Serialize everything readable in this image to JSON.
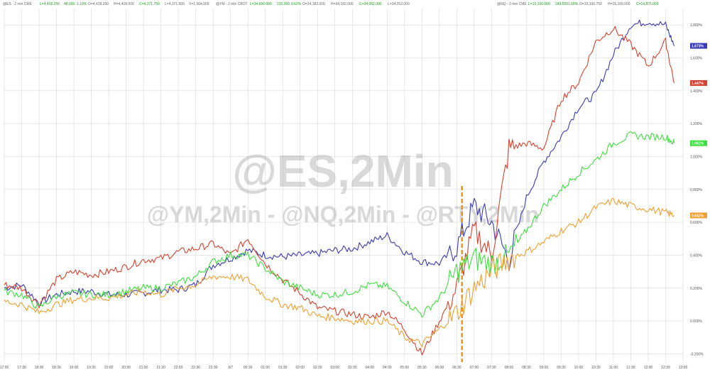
{
  "header": {
    "es": {
      "symbol": "@ES - 2 min CME",
      "last": "L=4,418.250",
      "chg": "48.000",
      "pct": "1.10%",
      "open": "O=4,418.250",
      "high": "H=4,418.500",
      "close": "C=4,371.750",
      "low": "L=4,371.500",
      "vol": "V=1,304,009"
    },
    "ym": {
      "symbol": "@YM - 2 min CBOT",
      "last": "L=34,656.000",
      "chg": "215.000",
      "pct": "0.62%",
      "open": "O=34,183.000",
      "high": "H=34,182.000",
      "close": "C=34,002.000",
      "low": "L=34,252.000"
    },
    "nq": {
      "symbol": "@NQ - 2 min CME",
      "last": "L=15,106.000",
      "chg": "249.500",
      "pct": "1.68%",
      "open": "O=15,100.750",
      "high": "H=15,100.000",
      "close": "C=14,875.000"
    }
  },
  "watermark": {
    "main": "@ES,2Min",
    "sub": "@YM,2Min - @NQ,2Min - @RTY,2Min"
  },
  "colors": {
    "nq": "#3a3ab8",
    "es": "#d9412e",
    "ym": "#3ee03e",
    "rty": "#f0a030",
    "marker": "#e08c10",
    "grid": "#d8d8d8"
  },
  "chart_data": {
    "type": "line",
    "title": "",
    "xlabel": "",
    "ylabel": "",
    "ylim": [
      -0.25,
      1.9
    ],
    "grid": true,
    "y_ticks": [
      "1.800%",
      "1.600%",
      "1.400%",
      "1.200%",
      "1.000%",
      "0.800%",
      "0.600%",
      "0.400%",
      "0.200%",
      "0.000%",
      "-0.200%"
    ],
    "x_ticks": [
      "17:00",
      "17:30",
      "18:00",
      "18:30",
      "19:00",
      "19:30",
      "20:00",
      "20:30",
      "21:00",
      "21:30",
      "22:00",
      "22:30",
      "23:30",
      "9/7",
      "00:30",
      "01:00",
      "01:30",
      "02:00",
      "02:30",
      "03:00",
      "03:30",
      "04:00",
      "04:30",
      "05:00",
      "05:30",
      "06:00",
      "06:30",
      "07:00",
      "07:30",
      "08:00",
      "08:30",
      "09:00",
      "09:30",
      "10:00",
      "10:30",
      "11:00",
      "11:30",
      "12:00",
      "12:30",
      "13:00"
    ],
    "x_range": [
      0,
      39
    ],
    "vline_at": 26.3,
    "series": [
      {
        "key": "nq",
        "last_label": "1.673%",
        "points": [
          [
            0,
            0.2
          ],
          [
            1,
            0.22
          ],
          [
            2,
            0.11
          ],
          [
            3,
            0.16
          ],
          [
            4,
            0.18
          ],
          [
            5,
            0.18
          ],
          [
            6,
            0.16
          ],
          [
            7,
            0.16
          ],
          [
            8,
            0.17
          ],
          [
            9,
            0.19
          ],
          [
            10,
            0.19
          ],
          [
            11,
            0.22
          ],
          [
            12,
            0.34
          ],
          [
            13,
            0.38
          ],
          [
            14,
            0.43
          ],
          [
            15,
            0.4
          ],
          [
            16,
            0.39
          ],
          [
            17,
            0.4
          ],
          [
            18,
            0.41
          ],
          [
            19,
            0.43
          ],
          [
            20,
            0.44
          ],
          [
            21,
            0.48
          ],
          [
            22,
            0.52
          ],
          [
            23,
            0.42
          ],
          [
            24,
            0.36
          ],
          [
            25,
            0.35
          ],
          [
            26,
            0.45
          ],
          [
            27,
            0.7
          ],
          [
            28,
            0.6
          ],
          [
            29,
            0.37
          ],
          [
            30,
            0.75
          ],
          [
            31,
            0.97
          ],
          [
            32,
            1.12
          ],
          [
            33,
            1.3
          ],
          [
            34,
            1.38
          ],
          [
            35,
            1.62
          ],
          [
            36,
            1.8
          ],
          [
            37,
            1.82
          ],
          [
            38,
            1.8
          ],
          [
            38.5,
            1.673
          ]
        ]
      },
      {
        "key": "es",
        "last_label": "1.447%",
        "points": [
          [
            0,
            0.22
          ],
          [
            1,
            0.2
          ],
          [
            2,
            0.1
          ],
          [
            3,
            0.25
          ],
          [
            4,
            0.3
          ],
          [
            5,
            0.28
          ],
          [
            6,
            0.3
          ],
          [
            7,
            0.33
          ],
          [
            8,
            0.37
          ],
          [
            9,
            0.38
          ],
          [
            10,
            0.42
          ],
          [
            11,
            0.44
          ],
          [
            12,
            0.47
          ],
          [
            13,
            0.4
          ],
          [
            14,
            0.5
          ],
          [
            15,
            0.35
          ],
          [
            16,
            0.25
          ],
          [
            17,
            0.17
          ],
          [
            18,
            0.08
          ],
          [
            19,
            0.06
          ],
          [
            20,
            0.04
          ],
          [
            21,
            0.02
          ],
          [
            22,
            0.06
          ],
          [
            23,
            -0.05
          ],
          [
            24,
            -0.2
          ],
          [
            25,
            0.0
          ],
          [
            26,
            0.2
          ],
          [
            27,
            0.55
          ],
          [
            28,
            0.4
          ],
          [
            29,
            1.05
          ],
          [
            30,
            1.08
          ],
          [
            31,
            1.05
          ],
          [
            32,
            1.35
          ],
          [
            33,
            1.45
          ],
          [
            34,
            1.7
          ],
          [
            35,
            1.78
          ],
          [
            36,
            1.68
          ],
          [
            37,
            1.55
          ],
          [
            38,
            1.7
          ],
          [
            38.5,
            1.447
          ]
        ]
      },
      {
        "key": "ym",
        "last_label": "1.081%",
        "points": [
          [
            0,
            0.18
          ],
          [
            1,
            0.16
          ],
          [
            2,
            0.08
          ],
          [
            3,
            0.15
          ],
          [
            4,
            0.17
          ],
          [
            5,
            0.16
          ],
          [
            6,
            0.16
          ],
          [
            7,
            0.18
          ],
          [
            8,
            0.2
          ],
          [
            9,
            0.2
          ],
          [
            10,
            0.23
          ],
          [
            11,
            0.27
          ],
          [
            12,
            0.36
          ],
          [
            13,
            0.4
          ],
          [
            14,
            0.4
          ],
          [
            15,
            0.32
          ],
          [
            16,
            0.24
          ],
          [
            17,
            0.2
          ],
          [
            18,
            0.16
          ],
          [
            19,
            0.16
          ],
          [
            20,
            0.18
          ],
          [
            21,
            0.22
          ],
          [
            22,
            0.21
          ],
          [
            23,
            0.12
          ],
          [
            24,
            0.04
          ],
          [
            25,
            0.14
          ],
          [
            26,
            0.3
          ],
          [
            27,
            0.38
          ],
          [
            28,
            0.35
          ],
          [
            29,
            0.4
          ],
          [
            30,
            0.55
          ],
          [
            31,
            0.7
          ],
          [
            32,
            0.8
          ],
          [
            33,
            0.9
          ],
          [
            34,
            0.98
          ],
          [
            35,
            1.08
          ],
          [
            36,
            1.13
          ],
          [
            37,
            1.12
          ],
          [
            38,
            1.12
          ],
          [
            38.5,
            1.081
          ]
        ]
      },
      {
        "key": "rty",
        "last_label": "0.642%",
        "points": [
          [
            0,
            0.12
          ],
          [
            1,
            0.1
          ],
          [
            2,
            0.05
          ],
          [
            3,
            0.1
          ],
          [
            4,
            0.13
          ],
          [
            5,
            0.14
          ],
          [
            6,
            0.14
          ],
          [
            7,
            0.16
          ],
          [
            8,
            0.18
          ],
          [
            9,
            0.16
          ],
          [
            10,
            0.2
          ],
          [
            11,
            0.22
          ],
          [
            12,
            0.27
          ],
          [
            13,
            0.27
          ],
          [
            14,
            0.25
          ],
          [
            15,
            0.15
          ],
          [
            16,
            0.1
          ],
          [
            17,
            0.08
          ],
          [
            18,
            0.03
          ],
          [
            19,
            0.02
          ],
          [
            20,
            0.0
          ],
          [
            21,
            0.0
          ],
          [
            22,
            0.0
          ],
          [
            23,
            -0.1
          ],
          [
            24,
            -0.14
          ],
          [
            25,
            -0.05
          ],
          [
            26,
            0.05
          ],
          [
            27,
            0.2
          ],
          [
            28,
            0.3
          ],
          [
            29,
            0.38
          ],
          [
            30,
            0.42
          ],
          [
            31,
            0.48
          ],
          [
            32,
            0.55
          ],
          [
            33,
            0.6
          ],
          [
            34,
            0.69
          ],
          [
            35,
            0.73
          ],
          [
            36,
            0.7
          ],
          [
            37,
            0.68
          ],
          [
            38,
            0.66
          ],
          [
            38.5,
            0.642
          ]
        ]
      }
    ]
  }
}
